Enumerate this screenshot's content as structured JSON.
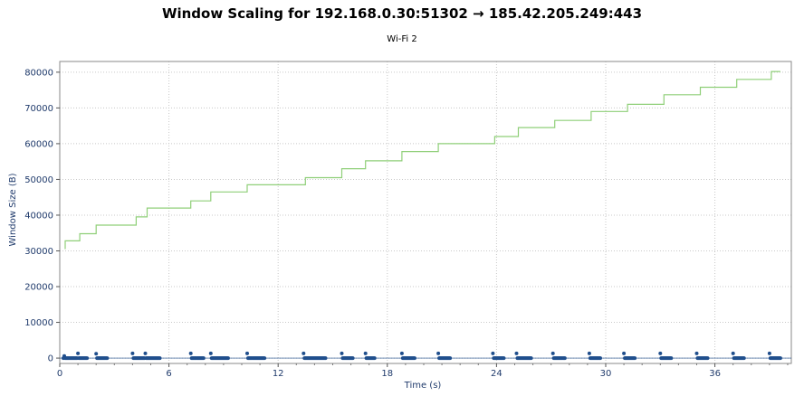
{
  "chart_data": {
    "type": "line",
    "title": "Window Scaling for 192.168.0.30:51302 → 185.42.205.249:443",
    "subtitle": "Wi-Fi 2",
    "xlabel": "Time (s)",
    "ylabel": "Window Size (B)",
    "xlim": [
      0,
      40.2
    ],
    "ylim": [
      -1500,
      83000
    ],
    "x_ticks": [
      0,
      6,
      12,
      18,
      24,
      30,
      36
    ],
    "y_ticks": [
      0,
      10000,
      20000,
      30000,
      40000,
      50000,
      60000,
      70000,
      80000
    ],
    "grid": true,
    "colors": {
      "window_line": "#8fcf78",
      "bytes_points": "#1f4e8c",
      "axis_text": "#1f3a6b",
      "grid": "#c8c8c8"
    },
    "series": [
      {
        "kind": "step-line",
        "x": [
          0.3,
          0.3,
          1.1,
          1.1,
          2.0,
          2.0,
          4.2,
          4.2,
          4.8,
          4.8,
          7.2,
          7.2,
          8.3,
          8.3,
          10.3,
          10.3,
          13.5,
          13.5,
          15.5,
          15.5,
          16.8,
          16.8,
          18.8,
          18.8,
          20.8,
          20.8,
          23.9,
          23.9,
          25.2,
          25.2,
          27.2,
          27.2,
          29.2,
          29.2,
          31.2,
          31.2,
          33.2,
          33.2,
          35.2,
          35.2,
          37.2,
          37.2,
          39.1,
          39.1,
          39.6
        ],
        "y": [
          30500,
          32800,
          32800,
          34800,
          34800,
          37200,
          37200,
          39500,
          39500,
          42000,
          42000,
          44000,
          44000,
          46500,
          46500,
          48500,
          48500,
          50500,
          50500,
          53000,
          53000,
          55200,
          55200,
          57800,
          57800,
          60000,
          60000,
          62000,
          62000,
          64500,
          64500,
          66500,
          66500,
          69000,
          69000,
          71000,
          71000,
          73700,
          73700,
          75800,
          75800,
          78000,
          78000,
          80200,
          80200
        ]
      },
      {
        "kind": "points",
        "x": [
          0.2,
          0.25,
          0.3,
          0.35,
          0.4,
          0.45,
          0.5,
          0.55,
          0.6,
          0.65,
          0.7,
          0.75,
          0.8,
          0.85,
          0.9,
          0.95,
          1.0,
          1.05,
          1.1,
          1.15,
          1.2,
          1.25,
          1.3,
          1.35,
          1.4,
          1.45,
          1.5,
          2.0,
          2.05,
          2.1,
          2.15,
          2.2,
          2.25,
          2.3,
          2.35,
          2.4,
          2.45,
          2.5,
          2.55,
          2.6,
          4.0,
          4.05,
          4.1,
          4.15,
          4.2,
          4.25,
          4.3,
          4.35,
          4.4,
          4.45,
          4.5,
          4.55,
          4.6,
          4.65,
          4.7,
          4.75,
          4.8,
          4.85,
          4.9,
          4.95,
          5.0,
          5.05,
          5.1,
          5.15,
          5.2,
          5.25,
          5.3,
          5.35,
          5.4,
          5.45,
          5.5,
          7.2,
          7.25,
          7.3,
          7.35,
          7.4,
          7.45,
          7.5,
          7.55,
          7.6,
          7.65,
          7.7,
          7.75,
          7.8,
          7.85,
          7.9,
          8.3,
          8.35,
          8.4,
          8.45,
          8.5,
          8.55,
          8.6,
          8.65,
          8.7,
          8.75,
          8.8,
          8.85,
          8.9,
          8.95,
          9.0,
          9.05,
          9.1,
          9.15,
          9.2,
          9.25,
          10.3,
          10.35,
          10.4,
          10.45,
          10.5,
          10.55,
          10.6,
          10.65,
          10.7,
          10.75,
          10.8,
          10.85,
          10.9,
          10.95,
          11.0,
          11.05,
          11.1,
          11.15,
          11.2,
          11.25,
          13.4,
          13.45,
          13.5,
          13.55,
          13.6,
          13.65,
          13.7,
          13.75,
          13.8,
          13.85,
          13.9,
          13.95,
          14.0,
          14.05,
          14.1,
          14.15,
          14.2,
          14.25,
          14.3,
          14.35,
          14.4,
          14.45,
          14.5,
          14.55,
          14.6,
          15.5,
          15.55,
          15.6,
          15.65,
          15.7,
          15.75,
          15.8,
          15.85,
          15.9,
          15.95,
          16.0,
          16.05,
          16.1,
          16.8,
          16.85,
          16.9,
          16.95,
          17.0,
          17.05,
          17.1,
          17.15,
          17.2,
          17.25,
          17.3,
          18.8,
          18.85,
          18.9,
          18.95,
          19.0,
          19.05,
          19.1,
          19.15,
          19.2,
          19.25,
          19.3,
          19.35,
          19.4,
          19.45,
          19.5,
          20.8,
          20.85,
          20.9,
          20.95,
          21.0,
          21.05,
          21.1,
          21.15,
          21.2,
          21.25,
          21.3,
          21.35,
          21.4,
          21.45,
          23.8,
          23.85,
          23.9,
          23.95,
          24.0,
          24.05,
          24.1,
          24.15,
          24.2,
          24.25,
          24.3,
          24.35,
          24.4,
          25.1,
          25.15,
          25.2,
          25.25,
          25.3,
          25.35,
          25.4,
          25.45,
          25.5,
          25.55,
          25.6,
          25.65,
          25.7,
          25.75,
          25.8,
          25.85,
          25.9,
          27.1,
          27.15,
          27.2,
          27.25,
          27.3,
          27.35,
          27.4,
          27.45,
          27.5,
          27.55,
          27.6,
          27.65,
          27.7,
          27.75,
          29.1,
          29.15,
          29.2,
          29.25,
          29.3,
          29.35,
          29.4,
          29.45,
          29.5,
          29.55,
          29.6,
          29.65,
          29.7,
          31.0,
          31.05,
          31.1,
          31.15,
          31.2,
          31.25,
          31.3,
          31.35,
          31.4,
          31.45,
          31.5,
          31.55,
          31.6,
          33.0,
          33.05,
          33.1,
          33.15,
          33.2,
          33.25,
          33.3,
          33.35,
          33.4,
          33.45,
          33.5,
          33.55,
          33.6,
          35.0,
          35.05,
          35.1,
          35.15,
          35.2,
          35.25,
          35.3,
          35.35,
          35.4,
          35.45,
          35.5,
          35.55,
          35.6,
          37.0,
          37.05,
          37.1,
          37.15,
          37.2,
          37.25,
          37.3,
          37.35,
          37.4,
          37.45,
          37.5,
          37.55,
          37.6,
          39.0,
          39.05,
          39.1,
          39.15,
          39.2,
          39.25,
          39.3,
          39.35,
          39.4,
          39.45,
          39.5,
          39.55,
          39.6
        ],
        "y": [
          0,
          600,
          0,
          0,
          0,
          0,
          0,
          0,
          0,
          0,
          0,
          0,
          0,
          0,
          0,
          0,
          1300,
          0,
          0,
          0,
          0,
          0,
          0,
          0,
          0,
          0,
          0,
          1200,
          0,
          0,
          0,
          0,
          0,
          0,
          0,
          0,
          0,
          0,
          0,
          0,
          1300,
          0,
          0,
          0,
          0,
          0,
          0,
          0,
          0,
          0,
          0,
          0,
          0,
          0,
          1300,
          0,
          0,
          0,
          0,
          0,
          0,
          0,
          0,
          0,
          0,
          0,
          0,
          0,
          0,
          0,
          0,
          1300,
          0,
          0,
          0,
          0,
          0,
          0,
          0,
          0,
          0,
          0,
          0,
          0,
          0,
          0,
          1300,
          0,
          0,
          0,
          0,
          0,
          0,
          0,
          0,
          0,
          0,
          0,
          0,
          0,
          0,
          0,
          0,
          0,
          0,
          0,
          1300,
          0,
          0,
          0,
          0,
          0,
          0,
          0,
          0,
          0,
          0,
          0,
          0,
          0,
          0,
          0,
          0,
          0,
          0,
          0,
          1300,
          0,
          0,
          0,
          0,
          0,
          0,
          0,
          0,
          0,
          0,
          0,
          0,
          0,
          0,
          0,
          0,
          0,
          0,
          0,
          0,
          0,
          0,
          0,
          0,
          1300,
          0,
          0,
          0,
          0,
          0,
          0,
          0,
          0,
          0,
          0,
          0,
          0,
          1300,
          0,
          0,
          0,
          0,
          0,
          0,
          0,
          0,
          0,
          0,
          1300,
          0,
          0,
          0,
          0,
          0,
          0,
          0,
          0,
          0,
          0,
          0,
          0,
          0,
          0,
          1300,
          0,
          0,
          0,
          0,
          0,
          0,
          0,
          0,
          0,
          0,
          0,
          0,
          0,
          1300,
          0,
          0,
          0,
          0,
          0,
          0,
          0,
          0,
          0,
          0,
          0,
          0,
          1300,
          0,
          0,
          0,
          0,
          0,
          0,
          0,
          0,
          0,
          0,
          0,
          0,
          0,
          0,
          0,
          0,
          1300,
          0,
          0,
          0,
          0,
          0,
          0,
          0,
          0,
          0,
          0,
          0,
          0,
          0,
          1300,
          0,
          0,
          0,
          0,
          0,
          0,
          0,
          0,
          0,
          0,
          0,
          0,
          1300,
          0,
          0,
          0,
          0,
          0,
          0,
          0,
          0,
          0,
          0,
          0,
          0,
          1300,
          0,
          0,
          0,
          0,
          0,
          0,
          0,
          0,
          0,
          0,
          0,
          0,
          1300,
          0,
          0,
          0,
          0,
          0,
          0,
          0,
          0,
          0,
          0,
          0,
          0,
          1300,
          0,
          0,
          0,
          0,
          0,
          0,
          0,
          0,
          0,
          0,
          0,
          0,
          1300,
          0,
          0,
          0,
          0,
          0,
          0,
          0,
          0,
          0,
          0,
          0,
          0
        ]
      }
    ]
  }
}
